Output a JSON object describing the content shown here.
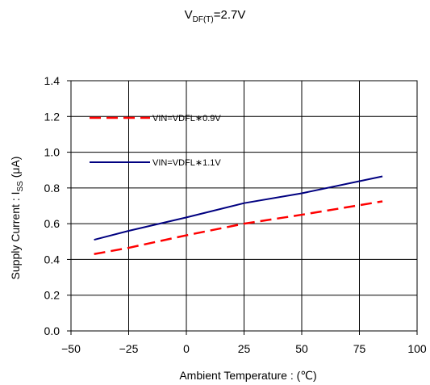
{
  "chart_data": {
    "type": "line",
    "title": {
      "main": "V",
      "subscript": "DF(T)",
      "suffix": "=2.7V"
    },
    "xlabel": "Ambient Temperature : (℃)",
    "ylabel": {
      "prefix": "Supply Current : I",
      "subscript": "SS",
      "suffix": " (μA)"
    },
    "xlim": [
      -50,
      100
    ],
    "ylim": [
      0.0,
      1.4
    ],
    "x_ticks": [
      -50,
      -25,
      0,
      25,
      50,
      75,
      100
    ],
    "x_tick_labels": [
      "−50",
      "−25",
      "0",
      "25",
      "50",
      "75",
      "100"
    ],
    "y_ticks": [
      0.0,
      0.2,
      0.4,
      0.6,
      0.8,
      1.0,
      1.2,
      1.4
    ],
    "y_tick_labels": [
      "0.0",
      "0.2",
      "0.4",
      "0.6",
      "0.8",
      "1.0",
      "1.2",
      "1.4"
    ],
    "grid": true,
    "legend_position": "top-left",
    "series": [
      {
        "name": "VIN=VDFL∗0.9V",
        "color": "#ff0000",
        "dash": "dashed",
        "x": [
          -40,
          -25,
          0,
          25,
          50,
          85
        ],
        "y": [
          0.43,
          0.465,
          0.535,
          0.6,
          0.65,
          0.725
        ]
      },
      {
        "name": "VIN=VDFL∗1.1V",
        "color": "#000080",
        "dash": "solid",
        "x": [
          -40,
          -25,
          0,
          25,
          50,
          85
        ],
        "y": [
          0.51,
          0.56,
          0.635,
          0.715,
          0.77,
          0.865
        ]
      }
    ]
  }
}
